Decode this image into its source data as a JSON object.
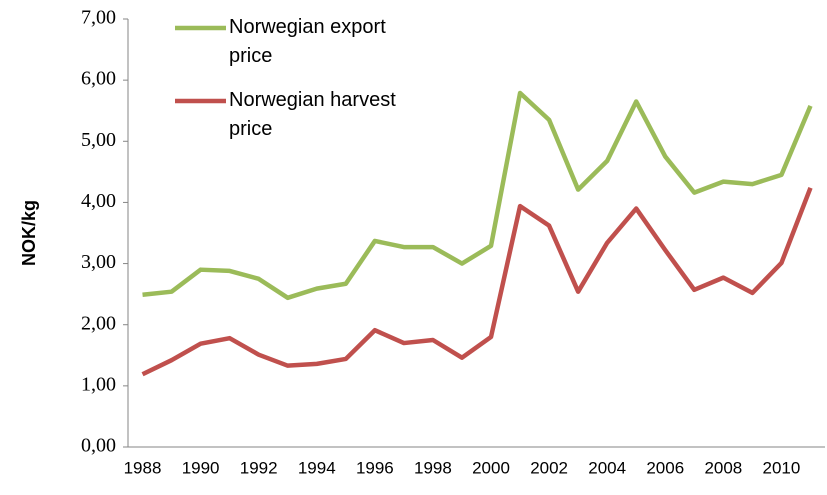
{
  "chart_data": {
    "type": "line",
    "y_label": "NOK/kg",
    "categories": [
      "1988",
      null,
      "1990",
      null,
      "1992",
      null,
      "1994",
      null,
      "1996",
      null,
      "1998",
      null,
      "2000",
      null,
      "2002",
      null,
      "2004",
      null,
      "2006",
      null,
      "2008",
      null,
      "2010",
      null
    ],
    "series": [
      {
        "name": "Norwegian export price",
        "color": "#9bbb59",
        "values": [
          2.49,
          2.54,
          2.9,
          2.88,
          2.75,
          2.44,
          2.59,
          2.67,
          3.37,
          3.27,
          3.27,
          3.0,
          3.29,
          5.79,
          5.35,
          4.21,
          4.68,
          5.65,
          4.75,
          4.16,
          4.34,
          4.3,
          4.45,
          5.58
        ]
      },
      {
        "name": "Norwegian harvest price",
        "color": "#c0504d",
        "values": [
          1.19,
          1.42,
          1.69,
          1.78,
          1.51,
          1.33,
          1.36,
          1.44,
          1.91,
          1.7,
          1.75,
          1.46,
          1.8,
          3.94,
          3.62,
          2.54,
          3.34,
          3.9,
          3.22,
          2.57,
          2.77,
          2.52,
          3.01,
          4.24
        ]
      }
    ],
    "ylim": [
      0,
      7
    ],
    "yticks": [
      {
        "value": 0,
        "label": "0,00"
      },
      {
        "value": 1,
        "label": "1,00"
      },
      {
        "value": 2,
        "label": "2,00"
      },
      {
        "value": 3,
        "label": "3,00"
      },
      {
        "value": 4,
        "label": "4,00"
      },
      {
        "value": 5,
        "label": "5,00"
      },
      {
        "value": 6,
        "label": "6,00"
      },
      {
        "value": 7,
        "label": "7,00"
      }
    ],
    "grid": false,
    "legend": "top-left"
  }
}
